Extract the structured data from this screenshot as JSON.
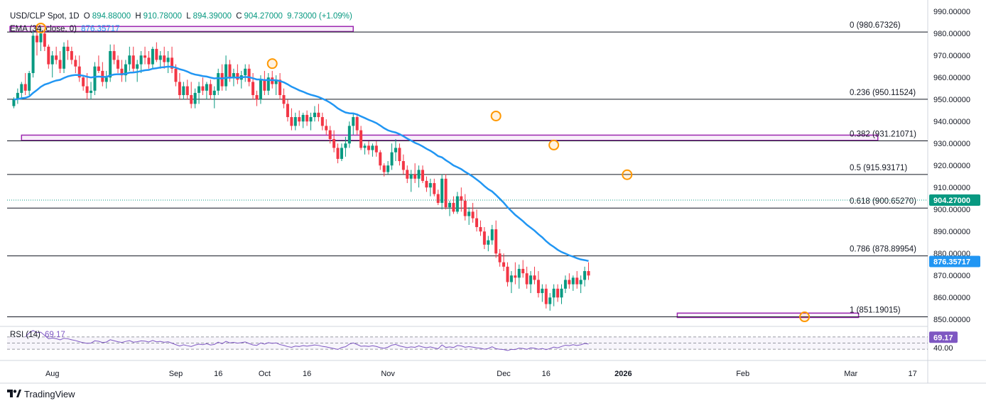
{
  "legend": {
    "symbol": "USD/CLP Spot, 1D",
    "open_key": "O",
    "open": "894.88000",
    "high_key": "H",
    "high": "910.78000",
    "low_key": "L",
    "low": "894.39000",
    "close_key": "C",
    "close": "904.27000",
    "change": "9.73000 (+1.09%)",
    "ema_label": "EMA (34, close, 0)",
    "ema_value": "876.35717",
    "rsi_label": "RSI (14)",
    "rsi_value": "69.17"
  },
  "brand": "TradingView",
  "colors": {
    "up": "#089981",
    "down": "#f23645",
    "ema": "#2196f3",
    "rsi": "#7e57c2",
    "fib": "#131722",
    "zone": "#9c27b0",
    "marker": "#ff9800",
    "grid": "#f0f3fa"
  },
  "chart_data": {
    "type": "candlestick",
    "price_axis": {
      "ticks": [
        "990.00000",
        "980.00000",
        "970.00000",
        "960.00000",
        "950.00000",
        "940.00000",
        "930.00000",
        "920.00000",
        "910.00000",
        "900.00000",
        "890.00000",
        "880.00000",
        "870.00000",
        "860.00000",
        "850.00000"
      ],
      "range": [
        847.5,
        992
      ]
    },
    "time_axis": {
      "ticks": [
        {
          "label": "Aug",
          "day": 11
        },
        {
          "label": "Sep",
          "day": 43
        },
        {
          "label": "16",
          "day": 54
        },
        {
          "label": "Oct",
          "day": 66
        },
        {
          "label": "16",
          "day": 77
        },
        {
          "label": "Nov",
          "day": 98
        },
        {
          "label": "Dec",
          "day": 128
        },
        {
          "label": "16",
          "day": 139
        },
        {
          "label": "2026",
          "day": 159
        },
        {
          "label": "Feb",
          "day": 190
        },
        {
          "label": "Mar",
          "day": 218
        },
        {
          "label": "17",
          "day": 234
        }
      ]
    },
    "last_price": "904.27000",
    "last_ema": "876.35717",
    "fib_levels": [
      {
        "ratio": "0",
        "value": 980.67326,
        "label": "0 (980.67326)"
      },
      {
        "ratio": "0.236",
        "value": 950.11524,
        "label": "0.236 (950.11524)"
      },
      {
        "ratio": "0.382",
        "value": 931.21071,
        "label": "0.382 (931.21071)"
      },
      {
        "ratio": "0.5",
        "value": 915.93171,
        "label": "0.5 (915.93171)"
      },
      {
        "ratio": "0.618",
        "value": 900.6527,
        "label": "0.618 (900.65270)"
      },
      {
        "ratio": "0.786",
        "value": 878.89954,
        "label": "0.786 (878.89954)"
      },
      {
        "ratio": "1",
        "value": 851.19015,
        "label": "1 (851.19015)"
      }
    ],
    "zones": [
      {
        "from_day": 0,
        "to_day": 89,
        "low": 980.9,
        "high": 983.2
      },
      {
        "from_day": 3,
        "to_day": 225,
        "low": 931.4,
        "high": 933.8
      },
      {
        "from_day": 173,
        "to_day": 220,
        "low": 850.9,
        "high": 852.9
      }
    ],
    "markers": [
      {
        "day": 8,
        "price": 982.5
      },
      {
        "day": 68,
        "price": 966.3
      },
      {
        "day": 126,
        "price": 942.5
      },
      {
        "day": 141,
        "price": 929.3
      },
      {
        "day": 160,
        "price": 915.8
      },
      {
        "day": 206,
        "price": 851.2
      }
    ],
    "ohlc": [
      [
        1,
        947,
        951,
        946,
        950
      ],
      [
        2,
        950,
        955,
        948,
        953
      ],
      [
        3,
        953,
        958,
        950,
        957
      ],
      [
        4,
        957,
        962,
        952,
        954
      ],
      [
        5,
        954,
        963,
        952,
        962
      ],
      [
        6,
        962,
        981,
        960,
        979
      ],
      [
        7,
        979,
        982,
        970,
        976
      ],
      [
        8,
        976,
        983,
        972,
        980
      ],
      [
        9,
        980,
        982,
        972,
        974
      ],
      [
        10,
        974,
        975,
        964,
        966
      ],
      [
        11,
        966,
        972,
        960,
        970
      ],
      [
        12,
        970,
        974,
        966,
        968
      ],
      [
        13,
        968,
        972,
        962,
        964
      ],
      [
        14,
        964,
        976,
        962,
        974
      ],
      [
        15,
        974,
        977,
        968,
        972
      ],
      [
        16,
        972,
        974,
        966,
        968
      ],
      [
        17,
        968,
        970,
        962,
        965
      ],
      [
        18,
        965,
        970,
        958,
        960
      ],
      [
        19,
        960,
        961,
        954,
        956
      ],
      [
        20,
        956,
        962,
        950,
        953
      ],
      [
        21,
        953,
        958,
        950,
        954
      ],
      [
        22,
        954,
        967,
        952,
        965
      ],
      [
        23,
        965,
        970,
        962,
        963
      ],
      [
        24,
        963,
        967,
        956,
        958
      ],
      [
        25,
        958,
        963,
        955,
        960
      ],
      [
        26,
        960,
        975,
        958,
        972
      ],
      [
        27,
        972,
        975,
        966,
        968
      ],
      [
        28,
        968,
        970,
        962,
        964
      ],
      [
        29,
        964,
        968,
        958,
        961
      ],
      [
        30,
        961,
        968,
        958,
        966
      ],
      [
        31,
        966,
        974,
        963,
        970
      ],
      [
        32,
        970,
        974,
        962,
        964
      ],
      [
        33,
        964,
        968,
        958,
        966
      ],
      [
        34,
        966,
        972,
        962,
        970
      ],
      [
        35,
        970,
        974,
        966,
        969
      ],
      [
        36,
        969,
        972,
        964,
        966
      ],
      [
        37,
        966,
        974,
        964,
        973
      ],
      [
        38,
        973,
        976,
        967,
        968
      ],
      [
        39,
        968,
        972,
        964,
        970
      ],
      [
        40,
        970,
        974,
        964,
        967
      ],
      [
        41,
        967,
        972,
        962,
        969
      ],
      [
        42,
        969,
        974,
        962,
        964
      ],
      [
        43,
        964,
        966,
        956,
        958
      ],
      [
        44,
        958,
        962,
        950,
        952
      ],
      [
        45,
        952,
        958,
        950,
        956
      ],
      [
        46,
        956,
        959,
        950,
        952
      ],
      [
        47,
        952,
        958,
        946,
        948
      ],
      [
        48,
        948,
        955,
        946,
        953
      ],
      [
        49,
        953,
        958,
        948,
        956
      ],
      [
        50,
        956,
        960,
        952,
        954
      ],
      [
        51,
        954,
        958,
        950,
        957
      ],
      [
        52,
        957,
        959,
        950,
        952
      ],
      [
        53,
        952,
        956,
        946,
        954
      ],
      [
        54,
        954,
        964,
        952,
        962
      ],
      [
        55,
        962,
        966,
        954,
        956
      ],
      [
        56,
        956,
        970,
        954,
        966
      ],
      [
        57,
        966,
        968,
        958,
        960
      ],
      [
        58,
        960,
        964,
        956,
        962
      ],
      [
        59,
        962,
        966,
        957,
        959
      ],
      [
        60,
        959,
        963,
        955,
        961
      ],
      [
        61,
        961,
        966,
        958,
        964
      ],
      [
        62,
        964,
        966,
        956,
        958
      ],
      [
        63,
        958,
        962,
        950,
        952
      ],
      [
        64,
        952,
        954,
        947,
        950
      ],
      [
        65,
        950,
        961,
        948,
        959
      ],
      [
        66,
        959,
        963,
        952,
        954
      ],
      [
        67,
        954,
        962,
        952,
        960
      ],
      [
        68,
        960,
        963,
        955,
        957
      ],
      [
        69,
        957,
        961,
        952,
        959
      ],
      [
        70,
        959,
        962,
        950,
        952
      ],
      [
        71,
        952,
        955,
        946,
        948
      ],
      [
        72,
        948,
        950,
        940,
        942
      ],
      [
        73,
        942,
        946,
        936,
        938
      ],
      [
        74,
        938,
        944,
        936,
        942
      ],
      [
        75,
        942,
        945,
        938,
        940
      ],
      [
        76,
        940,
        944,
        937,
        943
      ],
      [
        77,
        943,
        945,
        938,
        940
      ],
      [
        78,
        940,
        944,
        936,
        942
      ],
      [
        79,
        942,
        947,
        940,
        944
      ],
      [
        80,
        944,
        948,
        940,
        942
      ],
      [
        81,
        942,
        944,
        936,
        938
      ],
      [
        82,
        938,
        941,
        934,
        936
      ],
      [
        83,
        936,
        938,
        930,
        932
      ],
      [
        84,
        932,
        936,
        926,
        928
      ],
      [
        85,
        928,
        930,
        921,
        923
      ],
      [
        86,
        923,
        930,
        922,
        928
      ],
      [
        87,
        928,
        933,
        924,
        930
      ],
      [
        88,
        930,
        940,
        928,
        938
      ],
      [
        89,
        938,
        944,
        934,
        942
      ],
      [
        90,
        942,
        943,
        934,
        936
      ],
      [
        91,
        936,
        938,
        927,
        928
      ],
      [
        92,
        928,
        930,
        925,
        929
      ],
      [
        93,
        929,
        931,
        925,
        927
      ],
      [
        94,
        927,
        930,
        924,
        929
      ],
      [
        95,
        929,
        931,
        924,
        926
      ],
      [
        96,
        926,
        927,
        918,
        920
      ],
      [
        97,
        920,
        921,
        915,
        917
      ],
      [
        98,
        917,
        922,
        916,
        920
      ],
      [
        99,
        920,
        930,
        918,
        926
      ],
      [
        100,
        926,
        932,
        922,
        928
      ],
      [
        101,
        928,
        930,
        920,
        922
      ],
      [
        102,
        922,
        925,
        916,
        918
      ],
      [
        103,
        918,
        920,
        912,
        914
      ],
      [
        104,
        914,
        918,
        908,
        916
      ],
      [
        105,
        916,
        921,
        912,
        914
      ],
      [
        106,
        914,
        920,
        910,
        918
      ],
      [
        107,
        918,
        920,
        912,
        913
      ],
      [
        108,
        913,
        915,
        908,
        910
      ],
      [
        109,
        910,
        914,
        906,
        912
      ],
      [
        110,
        912,
        914,
        906,
        907
      ],
      [
        111,
        907,
        909,
        902,
        903
      ],
      [
        112,
        903,
        916,
        900,
        914
      ],
      [
        113,
        914,
        916,
        900,
        901
      ],
      [
        114,
        901,
        904,
        897,
        903
      ],
      [
        115,
        903,
        906,
        898,
        899
      ],
      [
        116,
        899,
        908,
        898,
        906
      ],
      [
        117,
        906,
        910,
        899,
        904
      ],
      [
        118,
        904,
        907,
        895,
        897
      ],
      [
        119,
        897,
        901,
        893,
        899
      ],
      [
        120,
        899,
        903,
        894,
        896
      ],
      [
        121,
        896,
        900,
        890,
        892
      ],
      [
        122,
        892,
        895,
        888,
        890
      ],
      [
        123,
        890,
        892,
        882,
        884
      ],
      [
        124,
        884,
        888,
        881,
        886
      ],
      [
        125,
        886,
        893,
        884,
        891
      ],
      [
        126,
        891,
        895,
        878,
        880
      ],
      [
        127,
        880,
        882,
        874,
        876
      ],
      [
        128,
        876,
        880,
        872,
        874
      ],
      [
        129,
        874,
        876,
        865,
        867
      ],
      [
        130,
        867,
        872,
        862,
        870
      ],
      [
        131,
        870,
        876,
        866,
        869
      ],
      [
        132,
        869,
        875,
        864,
        873
      ],
      [
        133,
        873,
        877,
        869,
        871
      ],
      [
        134,
        871,
        874,
        864,
        866
      ],
      [
        135,
        866,
        872,
        862,
        870
      ],
      [
        136,
        870,
        874,
        866,
        868
      ],
      [
        137,
        868,
        872,
        860,
        862
      ],
      [
        138,
        862,
        866,
        858,
        864
      ],
      [
        139,
        864,
        866,
        855,
        857
      ],
      [
        140,
        857,
        862,
        854,
        860
      ],
      [
        141,
        860,
        866,
        856,
        864
      ],
      [
        142,
        864,
        866,
        858,
        860
      ],
      [
        143,
        860,
        866,
        857,
        864
      ],
      [
        144,
        864,
        870,
        862,
        868
      ],
      [
        145,
        868,
        871,
        864,
        866
      ],
      [
        146,
        866,
        870,
        863,
        869
      ],
      [
        147,
        869,
        872,
        864,
        866
      ],
      [
        148,
        866,
        870,
        862,
        868
      ],
      [
        149,
        868,
        874,
        865,
        872
      ],
      [
        150,
        872,
        876,
        868,
        870
      ]
    ]
  }
}
